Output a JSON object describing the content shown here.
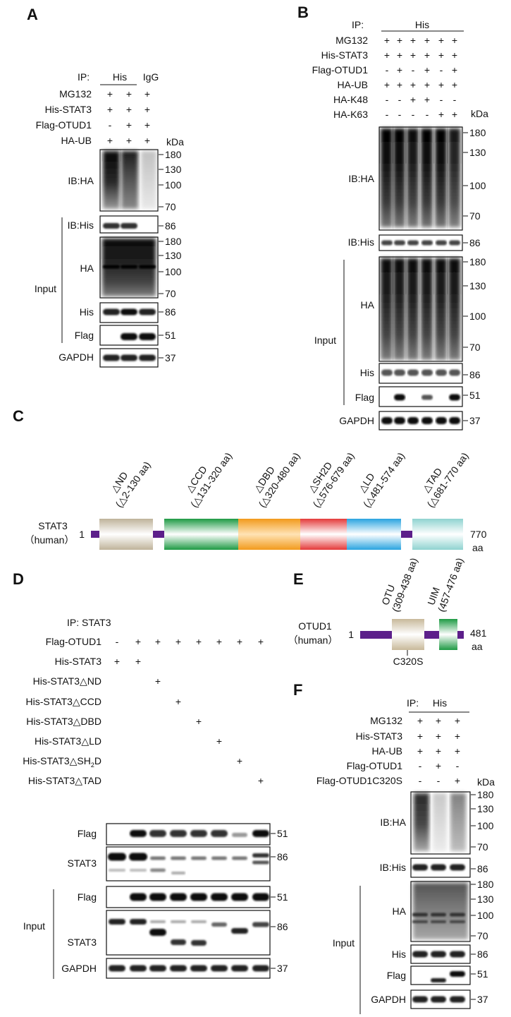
{
  "panels": {
    "A": {
      "letter": "A",
      "ip_label": "IP:",
      "ip_his": "His",
      "ip_igg": "IgG",
      "rows": [
        {
          "label": "MG132",
          "signs": [
            "+",
            "+",
            "+"
          ]
        },
        {
          "label": "His-STAT3",
          "signs": [
            "+",
            "+",
            "+"
          ]
        },
        {
          "label": "Flag-OTUD1",
          "signs": [
            "-",
            "+",
            "+"
          ]
        },
        {
          "label": "HA-UB",
          "signs": [
            "+",
            "+",
            "+"
          ]
        }
      ],
      "kda": "kDa",
      "blots": [
        {
          "label": "IB:HA",
          "markers": [
            "180",
            "130",
            "100",
            "70"
          ]
        },
        {
          "label": "IB:His",
          "markers": [
            "86"
          ]
        },
        {
          "label": "HA",
          "markers": [
            "180",
            "130",
            "100",
            "70"
          ]
        },
        {
          "label": "His",
          "markers": [
            "86"
          ]
        },
        {
          "label": "Flag",
          "markers": [
            "51"
          ]
        },
        {
          "label": "GAPDH",
          "markers": [
            "37"
          ]
        }
      ],
      "input_label": "Input"
    },
    "B": {
      "letter": "B",
      "ip_label": "IP:",
      "ip_his": "His",
      "rows": [
        {
          "label": "MG132",
          "signs": [
            "+",
            "+",
            "+",
            "+",
            "+",
            "+"
          ]
        },
        {
          "label": "His-STAT3",
          "signs": [
            "+",
            "+",
            "+",
            "+",
            "+",
            "+"
          ]
        },
        {
          "label": "Flag-OTUD1",
          "signs": [
            "-",
            "+",
            "-",
            "+",
            "-",
            "+"
          ]
        },
        {
          "label": "HA-UB",
          "signs": [
            "+",
            "+",
            "+",
            "+",
            "+",
            "+"
          ]
        },
        {
          "label": "HA-K48",
          "signs": [
            "-",
            "-",
            "+",
            "+",
            "-",
            "-"
          ]
        },
        {
          "label": "HA-K63",
          "signs": [
            "-",
            "-",
            "-",
            "-",
            "+",
            "+"
          ]
        }
      ],
      "kda": "kDa",
      "blots": [
        {
          "label": "IB:HA",
          "markers": [
            "180",
            "130",
            "100",
            "70"
          ]
        },
        {
          "label": "IB:His",
          "markers": [
            "86"
          ]
        },
        {
          "label": "HA",
          "markers": [
            "180",
            "130",
            "100",
            "70"
          ]
        },
        {
          "label": "His",
          "markers": [
            "86"
          ]
        },
        {
          "label": "Flag",
          "markers": [
            "51"
          ]
        },
        {
          "label": "GAPDH",
          "markers": [
            "37"
          ]
        }
      ],
      "input_label": "Input"
    },
    "C": {
      "letter": "C",
      "protein": "STAT3",
      "species": "（human）",
      "start": "1",
      "end": "770",
      "unit": "aa",
      "domains": [
        {
          "name": "△ND",
          "range": "(△2-130 aa)",
          "color": "#bfb39a"
        },
        {
          "name": "△CCD",
          "range": "(△131-320 aa)",
          "color": "#1e9a44"
        },
        {
          "name": "△DBD",
          "range": "(△320-480 aa)",
          "color": "#f29a1c"
        },
        {
          "name": "△SH2D",
          "range": "(△576-679 aa)",
          "color": "#e43a3a"
        },
        {
          "name": "△LD",
          "range": "(△481-574 aa)",
          "color": "#2aa4e0"
        },
        {
          "name": "△TAD",
          "range": "(△681-770 aa)",
          "color": "#8fd3d0"
        }
      ],
      "linker_color": "#5c1f8a"
    },
    "D": {
      "letter": "D",
      "ip_label": "IP: STAT3",
      "rows": [
        {
          "label": "Flag-OTUD1",
          "signs": [
            "-",
            "+",
            "+",
            "+",
            "+",
            "+",
            "+",
            "+"
          ]
        },
        {
          "label": "His-STAT3",
          "signs": [
            "+",
            "+",
            "",
            "",
            "",
            "",
            "",
            ""
          ]
        },
        {
          "label": "His-STAT3△ND",
          "signs": [
            "",
            "",
            "+",
            "",
            "",
            "",
            "",
            ""
          ]
        },
        {
          "label": "His-STAT3△CCD",
          "signs": [
            "",
            "",
            "",
            "+",
            "",
            "",
            "",
            ""
          ]
        },
        {
          "label": "His-STAT3△DBD",
          "signs": [
            "",
            "",
            "",
            "",
            "+",
            "",
            "",
            ""
          ]
        },
        {
          "label": "His-STAT3△LD",
          "signs": [
            "",
            "",
            "",
            "",
            "",
            "+",
            "",
            ""
          ]
        },
        {
          "label": "His-STAT3△SH",
          "sub": "2",
          "label_end": "D",
          "signs": [
            "",
            "",
            "",
            "",
            "",
            "",
            "+",
            ""
          ]
        },
        {
          "label": "His-STAT3△TAD",
          "signs": [
            "",
            "",
            "",
            "",
            "",
            "",
            "",
            "+"
          ]
        }
      ],
      "blots": [
        {
          "label": "Flag",
          "markers": [
            "51"
          ]
        },
        {
          "label": "STAT3",
          "markers": [
            "86"
          ]
        },
        {
          "label": "Flag",
          "markers": [
            "51"
          ]
        },
        {
          "label": "STAT3",
          "markers": [
            "86"
          ]
        },
        {
          "label": "GAPDH",
          "markers": [
            "37"
          ]
        }
      ],
      "input_label": "Input"
    },
    "E": {
      "letter": "E",
      "protein": "OTUD1",
      "species": "（human）",
      "start": "1",
      "end": "481",
      "unit": "aa",
      "domains": [
        {
          "name": "OTU",
          "range": "(309-438 aa)",
          "color": "#c8b99a"
        },
        {
          "name": "UIM",
          "range": "(457-476 aa)",
          "color": "#1e9a44"
        }
      ],
      "mutation": "C320S",
      "linker_color": "#5c1f8a"
    },
    "F": {
      "letter": "F",
      "ip_label": "IP:",
      "ip_his": "His",
      "rows": [
        {
          "label": "MG132",
          "signs": [
            "+",
            "+",
            "+"
          ]
        },
        {
          "label": "His-STAT3",
          "signs": [
            "+",
            "+",
            "+"
          ]
        },
        {
          "label": "HA-UB",
          "signs": [
            "+",
            "+",
            "+"
          ]
        },
        {
          "label": "Flag-OTUD1",
          "signs": [
            "-",
            "+",
            "-"
          ]
        },
        {
          "label": "Flag-OTUD1C320S",
          "signs": [
            "-",
            "-",
            "+"
          ]
        }
      ],
      "kda": "kDa",
      "blots": [
        {
          "label": "IB:HA",
          "markers": [
            "180",
            "130",
            "100",
            "70"
          ]
        },
        {
          "label": "IB:His",
          "markers": [
            "86"
          ]
        },
        {
          "label": "HA",
          "markers": [
            "180",
            "130",
            "100",
            "70"
          ]
        },
        {
          "label": "His",
          "markers": [
            "86"
          ]
        },
        {
          "label": "Flag",
          "markers": [
            "51"
          ]
        },
        {
          "label": "GAPDH",
          "markers": [
            "37"
          ]
        }
      ],
      "input_label": "Input"
    }
  }
}
